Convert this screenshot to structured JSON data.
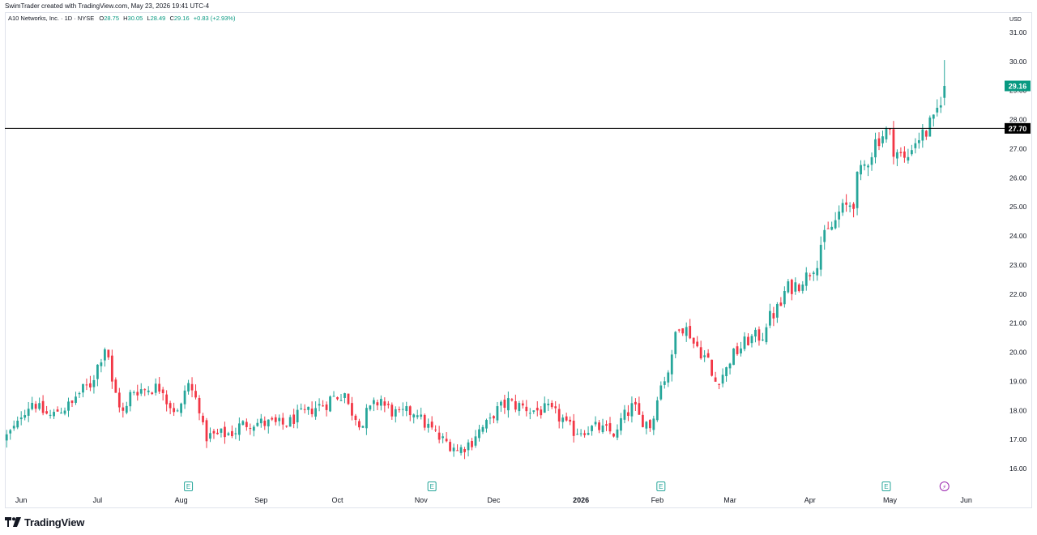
{
  "header": {
    "credit": "SwimTrader created with TradingView.com, May 23, 2026 19:41 UTC-4"
  },
  "footer": {
    "brand": "TradingView"
  },
  "colors": {
    "up": "#26a69a",
    "down": "#f23645",
    "line": "#000000",
    "last_price_bg": "#089981",
    "event_icon": "#26a69a",
    "dividend_icon": "#9c27b0"
  },
  "chart_data": {
    "type": "candlestick",
    "symbol_line": {
      "name": "A10 Networks, Inc. · 1D · NYSE",
      "o_label": "O",
      "o": "28.75",
      "h_label": "H",
      "h": "30.05",
      "l_label": "L",
      "l": "28.49",
      "c_label": "C",
      "c": "29.16",
      "change": "+0.83 (+2.93%)"
    },
    "currency": "USD",
    "ylim": [
      15.35,
      31.45
    ],
    "y_ticks": [
      "16.00",
      "17.00",
      "18.00",
      "19.00",
      "20.00",
      "21.00",
      "22.00",
      "23.00",
      "24.00",
      "25.00",
      "26.00",
      "27.00",
      "28.00",
      "29.00",
      "30.00",
      "31.00"
    ],
    "x_labels": [
      {
        "label": "Jun",
        "bold": false
      },
      {
        "label": "Jul",
        "bold": false
      },
      {
        "label": "Aug",
        "bold": false
      },
      {
        "label": "Sep",
        "bold": false
      },
      {
        "label": "Oct",
        "bold": false
      },
      {
        "label": "Nov",
        "bold": false
      },
      {
        "label": "Dec",
        "bold": false
      },
      {
        "label": "2026",
        "bold": true
      },
      {
        "label": "Feb",
        "bold": false
      },
      {
        "label": "Mar",
        "bold": false
      },
      {
        "label": "Apr",
        "bold": false
      },
      {
        "label": "May",
        "bold": false
      },
      {
        "label": "Jun",
        "bold": false
      }
    ],
    "horizontal_line": {
      "value": 27.7,
      "label": "27.70"
    },
    "last_price": {
      "value": 29.16,
      "label": "29.16"
    },
    "events": [
      {
        "type": "earnings",
        "text": "E"
      },
      {
        "type": "earnings",
        "text": "E"
      },
      {
        "type": "earnings",
        "text": "E"
      },
      {
        "type": "earnings",
        "text": "E"
      },
      {
        "type": "dividend",
        "text": "⚡"
      }
    ],
    "anchors": [
      [
        "2025-05-27",
        17.1
      ],
      [
        "2025-06-05",
        18.3
      ],
      [
        "2025-06-12",
        17.8
      ],
      [
        "2025-06-20",
        18.2
      ],
      [
        "2025-06-30",
        19.2
      ],
      [
        "2025-07-03",
        20.2
      ],
      [
        "2025-07-10",
        17.9
      ],
      [
        "2025-07-15",
        18.7
      ],
      [
        "2025-07-25",
        18.8
      ],
      [
        "2025-07-31",
        17.9
      ],
      [
        "2025-08-05",
        18.9
      ],
      [
        "2025-08-12",
        17.1
      ],
      [
        "2025-08-20",
        17.2
      ],
      [
        "2025-08-28",
        17.6
      ],
      [
        "2025-09-10",
        17.5
      ],
      [
        "2025-09-25",
        18.2
      ],
      [
        "2025-10-03",
        18.6
      ],
      [
        "2025-10-10",
        17.5
      ],
      [
        "2025-10-17",
        18.4
      ],
      [
        "2025-10-24",
        17.8
      ],
      [
        "2025-10-31",
        18.0
      ],
      [
        "2025-11-07",
        17.2
      ],
      [
        "2025-11-17",
        16.6
      ],
      [
        "2025-11-24",
        17.2
      ],
      [
        "2025-12-05",
        18.3
      ],
      [
        "2025-12-15",
        18.0
      ],
      [
        "2025-12-22",
        18.0
      ],
      [
        "2025-12-31",
        17.3
      ],
      [
        "2026-01-09",
        17.4
      ],
      [
        "2026-01-16",
        17.2
      ],
      [
        "2026-01-22",
        18.1
      ],
      [
        "2026-01-29",
        17.5
      ],
      [
        "2026-02-05",
        19.4
      ],
      [
        "2026-02-10",
        21.0
      ],
      [
        "2026-02-17",
        20.2
      ],
      [
        "2026-02-24",
        19.0
      ],
      [
        "2026-03-06",
        20.3
      ],
      [
        "2026-03-13",
        20.6
      ],
      [
        "2026-03-24",
        22.2
      ],
      [
        "2026-03-31",
        22.6
      ],
      [
        "2026-04-10",
        24.5
      ],
      [
        "2026-04-17",
        25.2
      ],
      [
        "2026-04-24",
        26.9
      ],
      [
        "2026-04-30",
        27.6
      ],
      [
        "2026-05-07",
        26.6
      ],
      [
        "2026-05-13",
        27.4
      ],
      [
        "2026-05-19",
        27.9
      ],
      [
        "2026-05-22",
        29.16
      ]
    ]
  }
}
